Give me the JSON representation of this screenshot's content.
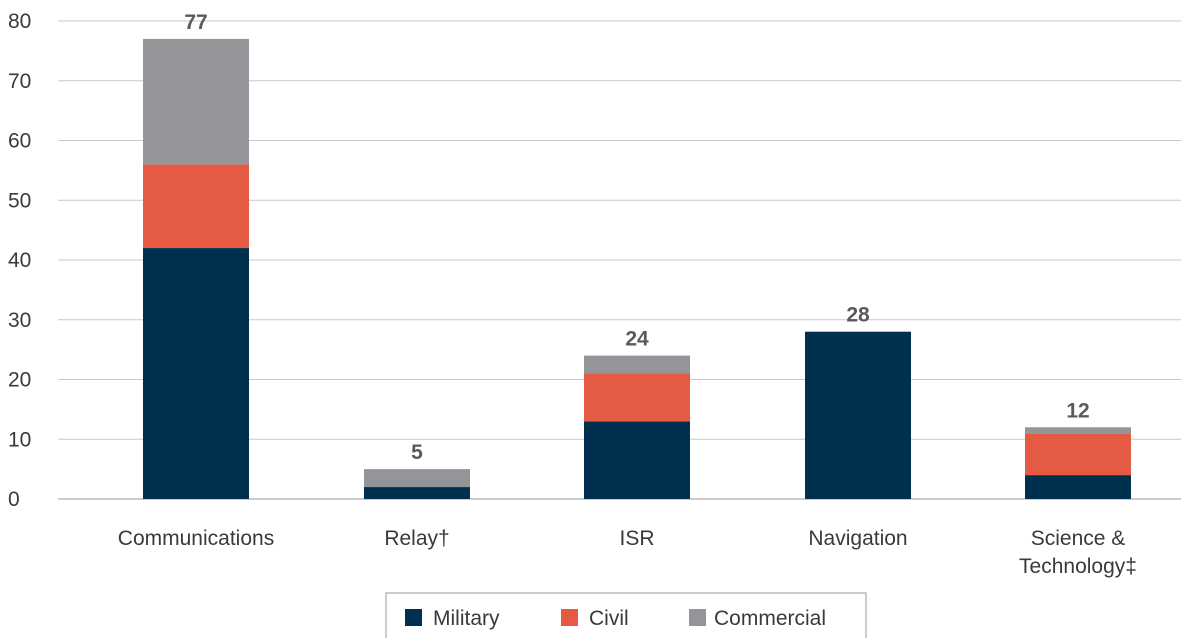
{
  "chart_data": {
    "type": "bar",
    "stacked": true,
    "title": "",
    "xlabel": "",
    "ylabel": "",
    "ylim": [
      0,
      80
    ],
    "yticks": [
      0,
      10,
      20,
      30,
      40,
      50,
      60,
      70,
      80
    ],
    "grid": true,
    "legend_position": "bottom",
    "categories": [
      [
        "Communications"
      ],
      [
        "Relay†"
      ],
      [
        "ISR"
      ],
      [
        "Navigation"
      ],
      [
        "Science &",
        "Technology‡"
      ]
    ],
    "series": [
      {
        "name": "Military",
        "color": "#00304f",
        "values": [
          42,
          2,
          13,
          28,
          4
        ]
      },
      {
        "name": "Civil",
        "color": "#e55a42",
        "values": [
          14,
          0,
          8,
          0,
          7
        ]
      },
      {
        "name": "Commercial",
        "color": "#939598",
        "values": [
          21,
          3,
          3,
          0,
          1
        ]
      }
    ],
    "totals": [
      "77",
      "5",
      "24",
      "28",
      "12"
    ]
  }
}
